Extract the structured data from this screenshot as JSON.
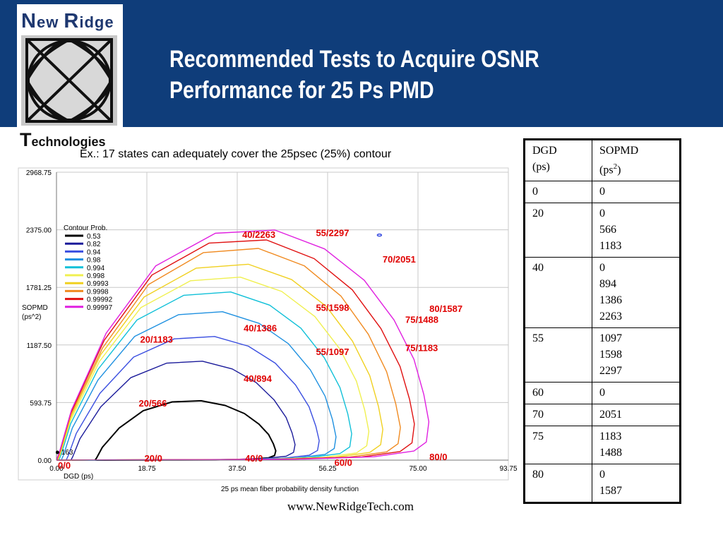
{
  "header": {
    "title_line1": "Recommended Tests to Acquire OSNR",
    "title_line2": "Performance for 25 Ps PMD",
    "bg_color": "#0f3d7a"
  },
  "logo": {
    "top_first": "N",
    "top_rest_1": "ew ",
    "top_second": "R",
    "top_rest_2": "idge",
    "bottom_first": "T",
    "bottom_rest": "echnologies"
  },
  "caption": "Ex.:  17 states can adequately cover the 25psec (25%) contour",
  "footer_url": "www.NewRidgeTech.com",
  "table": {
    "headers": [
      {
        "line1": "DGD",
        "line2": "(ps)"
      },
      {
        "line1": "SOPMD",
        "line2": "(ps",
        "sup": "2",
        "close": ")"
      }
    ],
    "rows": [
      {
        "dgd": "0",
        "sopmd": [
          "0"
        ]
      },
      {
        "dgd": "20",
        "sopmd": [
          "0",
          "566",
          "1183"
        ]
      },
      {
        "dgd": "40",
        "sopmd": [
          "0",
          "894",
          "1386",
          "2263"
        ]
      },
      {
        "dgd": "55",
        "sopmd": [
          "1097",
          "1598",
          "2297"
        ]
      },
      {
        "dgd": "60",
        "sopmd": [
          "0"
        ]
      },
      {
        "dgd": "70",
        "sopmd": [
          "2051"
        ]
      },
      {
        "dgd": "75",
        "sopmd": [
          "1183",
          "1488"
        ]
      },
      {
        "dgd": "80",
        "sopmd": [
          "0",
          "1587"
        ]
      }
    ]
  },
  "chart_data": {
    "type": "scatter",
    "title": "25 ps mean fiber probability density function",
    "xlabel": "DGD (ps)",
    "ylabel": "SOPMD (ps^2)",
    "ylabel_line1": "SOPMD",
    "ylabel_line2": "(ps^2)",
    "xlim": [
      0,
      93.75
    ],
    "ylim": [
      0,
      2968.75
    ],
    "x_ticks": [
      "0.00",
      "18.75",
      "37.50",
      "56.25",
      "75.00",
      "93.75"
    ],
    "y_ticks": [
      "0.00",
      "593.75",
      "1187.50",
      "1781.25",
      "2375.00",
      "2968.75"
    ],
    "legend_title": "Contour Prob.",
    "legend_position": "top-left",
    "contours": [
      {
        "prob": "0.53",
        "color": "#000000"
      },
      {
        "prob": "0.82",
        "color": "#1a1a9a"
      },
      {
        "prob": "0.94",
        "color": "#3a4ee0"
      },
      {
        "prob": "0.98",
        "color": "#1e90e0"
      },
      {
        "prob": "0.994",
        "color": "#10c0d8"
      },
      {
        "prob": "0.998",
        "color": "#f0f050"
      },
      {
        "prob": "0.9993",
        "color": "#f0d020"
      },
      {
        "prob": "0.9998",
        "color": "#f08a20"
      },
      {
        "prob": "0.99992",
        "color": "#e01010"
      },
      {
        "prob": "0.99997",
        "color": "#e020e0"
      }
    ],
    "annotations": [
      {
        "label": "55/2297",
        "x": 55,
        "y": 2297
      },
      {
        "label": "40/2263",
        "x": 40,
        "y": 2263
      },
      {
        "label": "70/2051",
        "x": 70,
        "y": 2051
      },
      {
        "label": "80/1587",
        "x": 80,
        "y": 1587
      },
      {
        "label": "55/1598",
        "x": 55,
        "y": 1598
      },
      {
        "label": "75/1488",
        "x": 75,
        "y": 1488
      },
      {
        "label": "40/1386",
        "x": 40,
        "y": 1386
      },
      {
        "label": "75/1183",
        "x": 75,
        "y": 1183
      },
      {
        "label": "20/1183",
        "x": 20,
        "y": 1183
      },
      {
        "label": "55/1097",
        "x": 55,
        "y": 1097
      },
      {
        "label": "40/894",
        "x": 40,
        "y": 894
      },
      {
        "label": "20/566",
        "x": 20,
        "y": 566
      },
      {
        "label": "0/0",
        "x": 0,
        "y": 0
      },
      {
        "label": "20/0",
        "x": 20,
        "y": 0
      },
      {
        "label": "40/0",
        "x": 40,
        "y": 0
      },
      {
        "label": "60/0",
        "x": 60,
        "y": 0
      },
      {
        "label": "80/0",
        "x": 80,
        "y": 0
      }
    ],
    "point_label": "163",
    "annotation_color": "#e00000"
  }
}
